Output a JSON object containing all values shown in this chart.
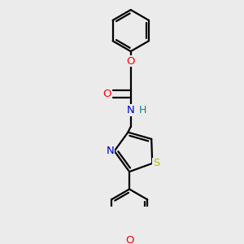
{
  "bg_color": "#ebebeb",
  "bond_color": "#000000",
  "bond_width": 1.6,
  "dbo": 0.018,
  "atom_colors": {
    "O": "#ff0000",
    "N": "#0000cc",
    "S": "#bbbb00",
    "H": "#008888",
    "C": "#000000"
  },
  "font_size": 9.5
}
